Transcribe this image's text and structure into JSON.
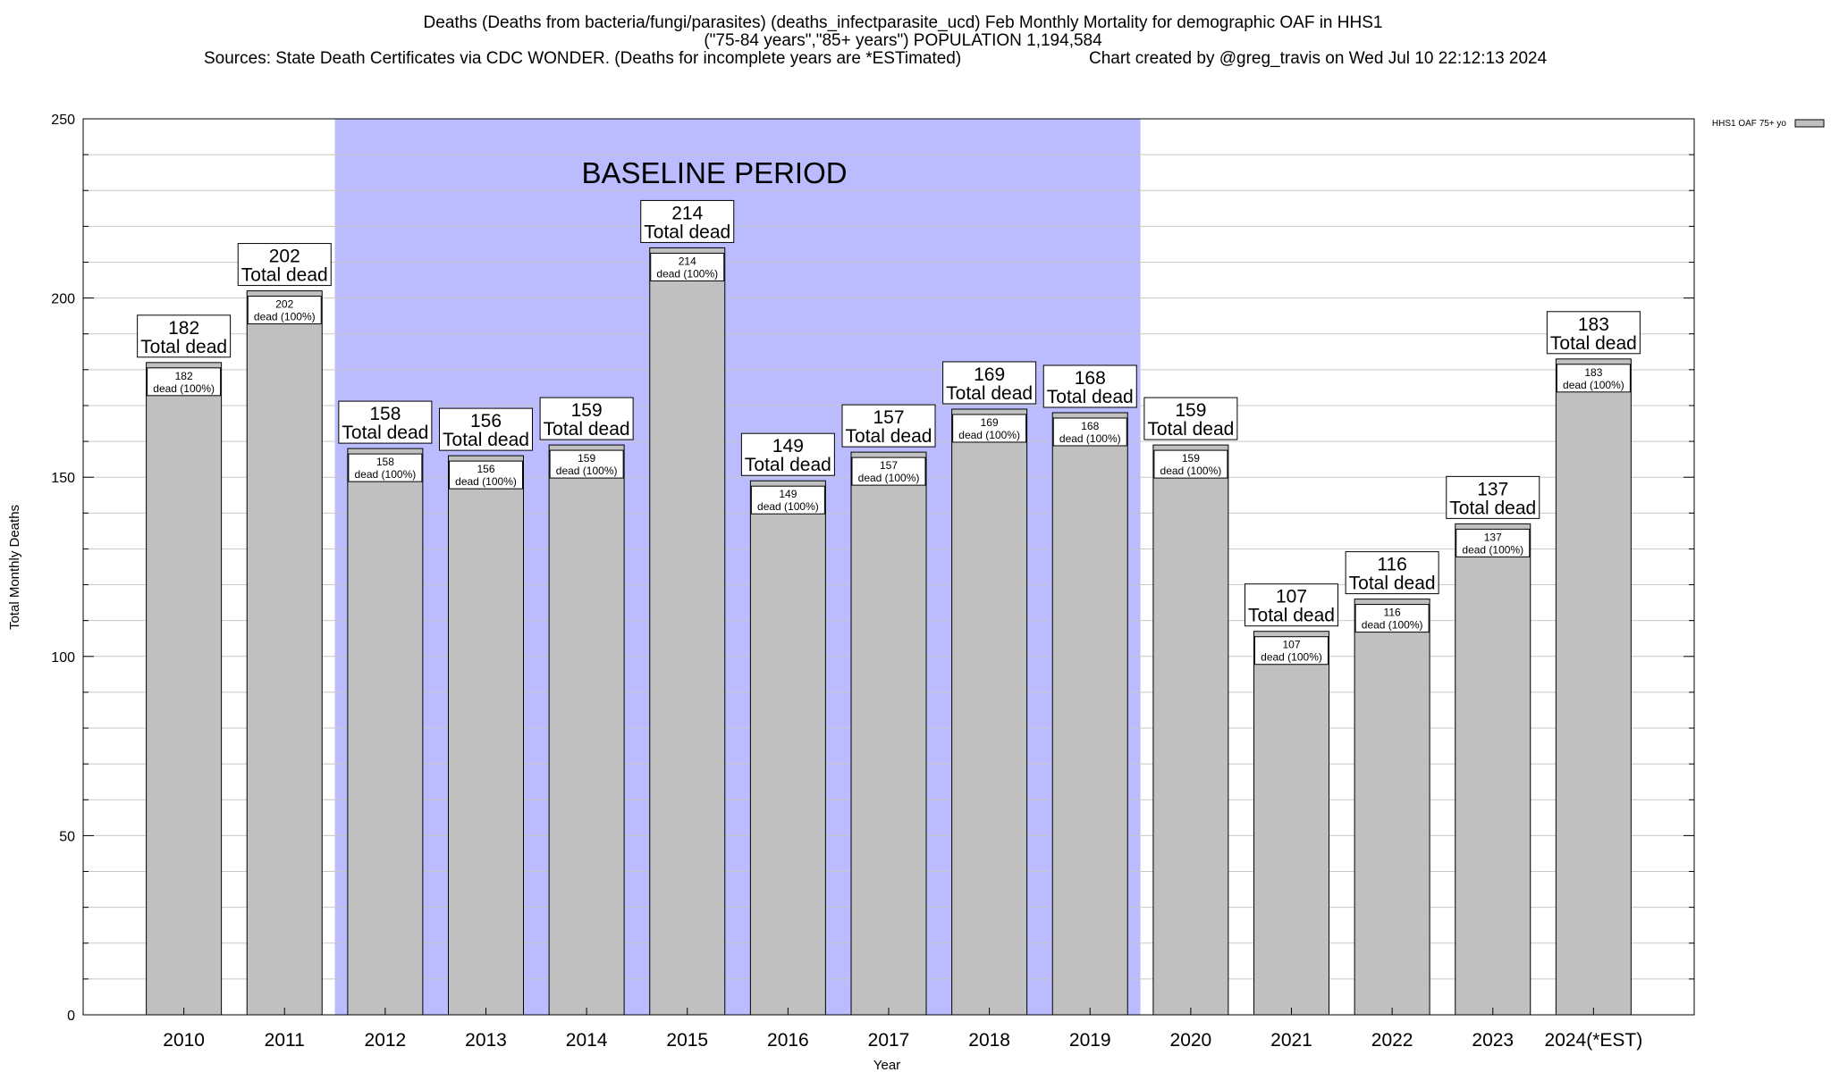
{
  "title": {
    "line1": "Deaths (Deaths from bacteria/fungi/parasites) (deaths_infectparasite_ucd) Feb Monthly Mortality for demographic OAF in HHS1",
    "line2": "(\"75-84 years\",\"85+ years\") POPULATION 1,194,584",
    "line3_left": "Sources: State Death Certificates via CDC WONDER. (Deaths for incomplete years are *ESTimated)",
    "line3_right": "Chart created by @greg_travis on Wed Jul 10 22:12:13 2024"
  },
  "colors": {
    "bar_fill": "#c0c0c0",
    "baseline_fill": "#bbbbff",
    "grid": "#c8c8c8"
  },
  "chart_data": {
    "type": "bar",
    "categories": [
      "2010",
      "2011",
      "2012",
      "2013",
      "2014",
      "2015",
      "2016",
      "2017",
      "2018",
      "2019",
      "2020",
      "2021",
      "2022",
      "2023",
      "2024(*EST)"
    ],
    "series": [
      {
        "name": "HHS1 OAF 75+ yo",
        "values": [
          182,
          202,
          158,
          156,
          159,
          214,
          149,
          157,
          169,
          168,
          159,
          107,
          116,
          137,
          183
        ]
      }
    ],
    "bar_label_top": "Total dead",
    "bar_label_inner": "dead (100%)",
    "xlabel": "Year",
    "ylabel": "Total Monthly Deaths",
    "ylim": [
      0,
      250
    ],
    "yticks": [
      0,
      50,
      100,
      150,
      200,
      250
    ],
    "grid": true,
    "legend_position": "top-right",
    "baseline_period": {
      "label": "BASELINE PERIOD",
      "start": "2012",
      "end": "2019"
    }
  }
}
